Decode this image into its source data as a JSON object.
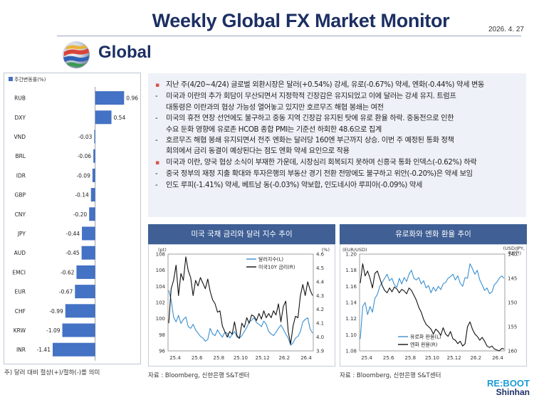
{
  "header": {
    "title": "Weekly Global FX Market Monitor",
    "date": "2026. 4. 27",
    "region": "Global"
  },
  "bar_panel": {
    "footnote": "주) 달러 대비 절상(+)/절하(-)를 의미"
  },
  "commentary": [
    {
      "marker": "dot",
      "text": "지난 주(4/20~4/24) 글로벌 외환시장은 달러(+0.54%) 강세, 유로(-0.67%) 약세, 엔화(-0.44%) 약세 변동"
    },
    {
      "marker": "dash",
      "text": "미국과 이란의 추가 회담이 무산되면서 지정학적 긴장감은 유지되었고 이에 달러는 강세 유지. 트럼프"
    },
    {
      "marker": "cont",
      "text": "대통령은 이란과의 협상 가능성 열어놓고 있지만 호르무즈 해협 봉쇄는 여전"
    },
    {
      "marker": "dash",
      "text": "미국의 휴전 연장 선언에도 불구하고 중동 지역 긴장감 유지된 탓에 유로 환율 하락. 중동전으로 인한"
    },
    {
      "marker": "cont",
      "text": "수요 둔화 영향에 유로존 HCOB 종합 PMI는 기준선 하회한 48.6으로 집계"
    },
    {
      "marker": "dash",
      "text": "호르무즈 해협 봉쇄 유지되면서 전주 엔화는 달러당 160엔 부근까지 상승. 이번 주 예정된 통화 정책"
    },
    {
      "marker": "cont",
      "text": "회의에서 금리 동결이 예상된다는 점도 엔화 약세 요인으로 작용"
    },
    {
      "marker": "dot",
      "text": "미국과 이란, 양국 협상 소식이 부재한 가운데, 시장심리 회복되지 못하며 신흥국 통화 인덱스(-0.62%) 하락"
    },
    {
      "marker": "dash",
      "text": "중국 정부의 재정 지출 확대와 투자은행의 부동산 경기 전환 전망에도 불구하고 위안(-0.20%)은 약세 보임"
    },
    {
      "marker": "dash",
      "text": "인도 루피(-1.41%) 약세, 베트남 동(-0.03%) 약보합, 인도네시아 루피아(-0.09%) 약세"
    }
  ],
  "charts": {
    "us_rates": {
      "title": "미국 국채 금리와 달러 지수 추이",
      "source": "자료 : Bloomberg, 신한은행 S&T센터"
    },
    "eur_jpy": {
      "title": "유로화와 엔화 환율 추이",
      "source": "자료 : Bloomberg, 신한은행 S&T센터"
    }
  },
  "logo": {
    "line1": "RE:BOOT",
    "line2": "Shinhan"
  },
  "colors": {
    "navy": "#1c2f63",
    "bar": "#4472c4",
    "panel_head": "#3f5f95",
    "series_blue": "#3a8fd0",
    "series_black": "#111111"
  },
  "chart_data": [
    {
      "type": "bar",
      "orientation": "horizontal",
      "legend": [
        "주간변동률(%)"
      ],
      "categories": [
        "RUB",
        "DXY",
        "VND",
        "BRL",
        "IDR",
        "GBP",
        "CNY",
        "JPY",
        "AUD",
        "EMCI",
        "EUR",
        "CHF",
        "KRW",
        "INR"
      ],
      "value_labels": [
        "0.96",
        "0.54",
        "-0.03",
        "-0.06",
        "-0.09",
        "-0.14",
        "-0.20",
        "-0.44",
        "-0.45",
        "-0.62",
        "-0.67",
        "-0.99",
        "-1.09",
        "-1.41"
      ],
      "values": [
        0.96,
        0.54,
        -0.03,
        -0.06,
        -0.09,
        -0.14,
        -0.2,
        -0.44,
        -0.45,
        -0.62,
        -0.67,
        -0.99,
        -1.09,
        -1.41
      ],
      "xlim": [
        -2,
        1
      ],
      "xticks": [
        "-2",
        "-1",
        "0",
        "1"
      ]
    },
    {
      "type": "line",
      "title": "미국 국채 금리와 달러 지수 추이",
      "x_ticks": [
        "25.4",
        "25.6",
        "25.8",
        "25.10",
        "25.12",
        "26.2",
        "26.4"
      ],
      "left_unit": "(pt)",
      "right_unit": "(%)",
      "ylim_left": [
        96,
        108
      ],
      "yticks_left": [
        "96",
        "98",
        "100",
        "102",
        "104",
        "106",
        "108"
      ],
      "ylim_right": [
        3.9,
        4.6
      ],
      "yticks_right": [
        "3.9",
        "4.0",
        "4.1",
        "4.2",
        "4.3",
        "4.4",
        "4.5",
        "4.6"
      ],
      "legend_position": "top-right",
      "series": [
        {
          "name": "달러지수(L)",
          "axis": "left",
          "color": "#3a8fd0",
          "values": [
            103.5,
            102.3,
            100.2,
            99.6,
            100.4,
            99.4,
            99.9,
            100.2,
            99.0,
            98.8,
            99.3,
            98.6,
            98.2,
            97.8,
            97.6,
            97.2,
            97.4,
            98.8,
            98.1,
            97.9,
            98.6,
            98.1,
            97.7,
            98.3,
            98.2,
            97.6,
            98.0,
            98.4,
            97.7,
            97.6,
            97.9,
            98.4,
            98.9,
            99.6,
            99.8,
            100.1,
            99.5,
            99.3,
            99.0,
            99.7,
            99.3,
            98.4,
            98.1,
            97.9,
            98.3,
            98.8,
            99.2,
            98.7,
            98.1,
            97.6,
            96.7,
            97.0,
            97.6,
            97.8,
            98.4,
            99.6,
            99.9,
            100.1,
            98.7,
            98.2
          ]
        },
        {
          "name": "미국10Y 금리(R)",
          "axis": "right",
          "color": "#111111",
          "values": [
            4.1,
            4.35,
            4.41,
            4.52,
            4.3,
            4.46,
            4.41,
            4.58,
            4.48,
            4.43,
            4.3,
            4.41,
            4.37,
            4.43,
            4.39,
            4.35,
            4.42,
            4.33,
            4.27,
            4.24,
            4.18,
            4.19,
            4.08,
            4.04,
            4.0,
            4.04,
            4.02,
            4.11,
            4.01,
            3.99,
            4.1,
            4.07,
            4.14,
            4.1,
            4.16,
            4.15,
            4.12,
            4.17,
            4.13,
            4.19,
            4.14,
            4.17,
            4.14,
            4.19,
            4.16,
            4.24,
            4.11,
            4.22,
            4.26,
            4.04,
            3.95,
            4.08,
            4.15,
            4.14,
            4.3,
            4.38,
            4.3,
            4.4,
            4.34,
            4.3
          ]
        }
      ]
    },
    {
      "type": "line",
      "title": "유로화와 엔화 환율 추이",
      "x_ticks": [
        "25.4",
        "25.6",
        "25.8",
        "25.10",
        "25.12",
        "26.2",
        "26.4"
      ],
      "left_unit": "(EUR/USD)",
      "right_unit": "(USD/JPY, 축반전)",
      "ylim_left": [
        1.08,
        1.2
      ],
      "yticks_left": [
        "1.08",
        "1.10",
        "1.12",
        "1.14",
        "1.16",
        "1.18",
        "1.20"
      ],
      "ylim_right_inverted": [
        160,
        140
      ],
      "yticks_right": [
        "140",
        "145",
        "150",
        "155",
        "160"
      ],
      "legend_position": "bottom-right",
      "series": [
        {
          "name": "유로화 환율(L)",
          "axis": "left",
          "color": "#3a8fd0",
          "values": [
            1.095,
            1.135,
            1.14,
            1.125,
            1.135,
            1.128,
            1.145,
            1.15,
            1.16,
            1.165,
            1.17,
            1.175,
            1.167,
            1.17,
            1.162,
            1.159,
            1.17,
            1.163,
            1.171,
            1.166,
            1.175,
            1.18,
            1.17,
            1.168,
            1.171,
            1.163,
            1.167,
            1.158,
            1.161,
            1.152,
            1.159,
            1.154,
            1.16,
            1.156,
            1.163,
            1.165,
            1.17,
            1.172,
            1.175,
            1.168,
            1.173,
            1.164,
            1.16,
            1.171,
            1.17,
            1.188,
            1.182,
            1.175,
            1.18,
            1.168,
            1.162,
            1.155,
            1.158,
            1.151,
            1.153,
            1.162,
            1.165,
            1.17,
            1.173,
            1.17
          ]
        },
        {
          "name": "엔화 환율(R)",
          "axis": "right",
          "color": "#111111",
          "values": [
            146.0,
            142.0,
            144.5,
            143.5,
            145.0,
            147.0,
            144.0,
            143.5,
            145.0,
            146.5,
            147.5,
            148.0,
            147.0,
            147.8,
            146.8,
            147.2,
            148.0,
            147.3,
            147.6,
            148.2,
            147.0,
            147.5,
            148.5,
            149.5,
            151.0,
            152.0,
            153.5,
            154.5,
            155.0,
            155.5,
            156.5,
            155.5,
            156.0,
            156.8,
            155.2,
            156.5,
            157.0,
            156.0,
            157.5,
            157.8,
            158.5,
            158.0,
            159.0,
            158.5,
            155.0,
            154.0,
            155.5,
            156.5,
            157.0,
            157.8,
            157.2,
            158.0,
            159.0,
            159.3,
            159.0,
            159.6,
            159.8,
            160.0,
            159.5,
            159.6
          ]
        }
      ]
    }
  ]
}
